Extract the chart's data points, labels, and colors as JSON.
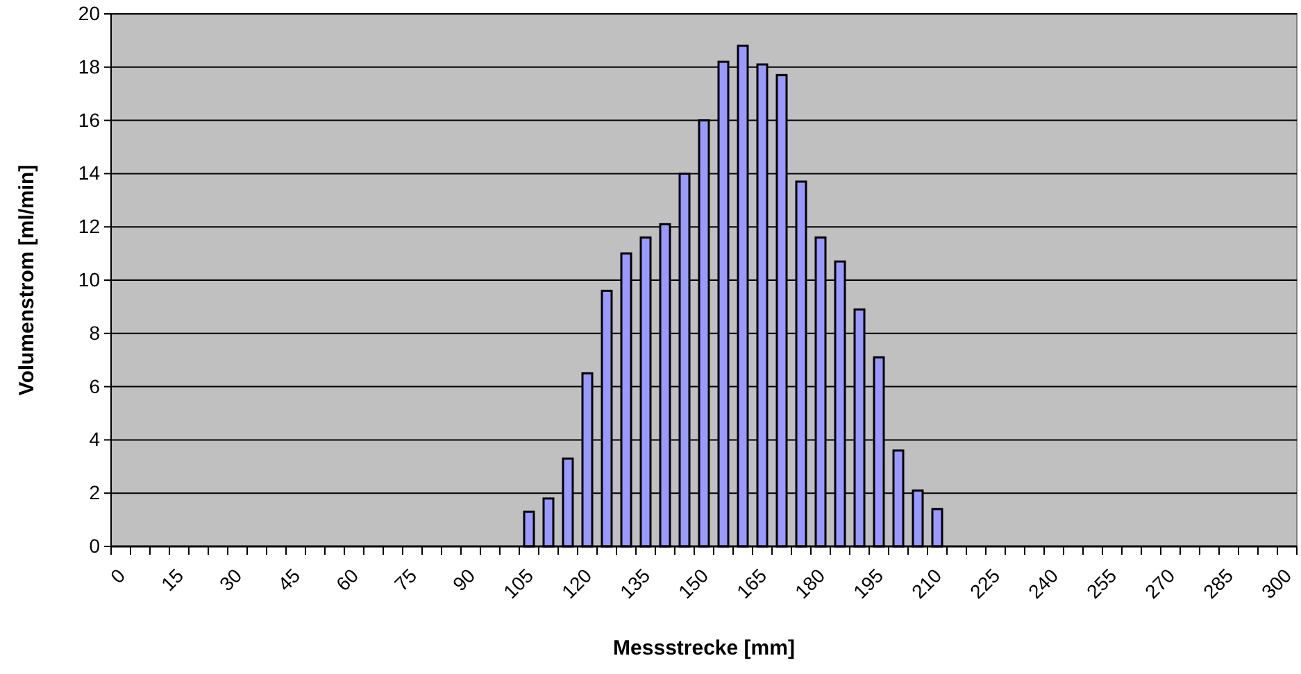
{
  "chart_data": {
    "type": "bar",
    "xlabel": "Messstrecke [mm]",
    "ylabel": "Volumenstrom [ml/min]",
    "categories": [
      "0",
      null,
      null,
      "15",
      null,
      null,
      "30",
      null,
      null,
      "45",
      null,
      null,
      "60",
      null,
      null,
      "75",
      null,
      null,
      "90",
      null,
      null,
      "105",
      null,
      null,
      "120",
      null,
      null,
      "135",
      null,
      null,
      "150",
      null,
      null,
      "165",
      null,
      null,
      "180",
      null,
      null,
      "195",
      null,
      null,
      "210",
      null,
      null,
      "225",
      null,
      null,
      "240",
      null,
      null,
      "255",
      null,
      null,
      "270",
      null,
      null,
      "285",
      null,
      null,
      "300"
    ],
    "values": [
      0,
      0,
      0,
      0,
      0,
      0,
      0,
      0,
      0,
      0,
      0,
      0,
      0,
      0,
      0,
      0,
      0,
      0,
      0,
      0,
      0,
      1.3,
      1.8,
      3.3,
      6.5,
      9.6,
      11.0,
      11.6,
      12.1,
      14.0,
      16.0,
      18.2,
      18.8,
      18.1,
      17.7,
      13.7,
      11.6,
      10.7,
      8.9,
      7.1,
      3.6,
      2.1,
      1.4,
      0,
      0,
      0,
      0,
      0,
      0,
      0,
      0,
      0,
      0,
      0,
      0,
      0,
      0,
      0,
      0,
      0,
      0
    ],
    "color": "#9999ff",
    "ylim": [
      0,
      20
    ],
    "yticks": [
      0,
      2,
      4,
      6,
      8,
      10,
      12,
      14,
      16,
      18,
      20
    ],
    "grid": "y"
  }
}
